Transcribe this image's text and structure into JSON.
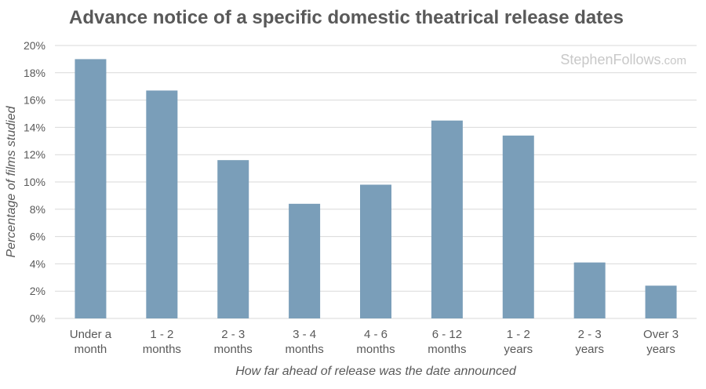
{
  "chart_data": {
    "type": "bar",
    "title": "Advance notice of a specific domestic theatrical release dates",
    "watermark": "StephenFollows.com",
    "xlabel": "How far ahead of release was the date announced",
    "ylabel": "Percentage of films studied",
    "ylim": [
      0,
      20
    ],
    "yticks": [
      "0%",
      "2%",
      "4%",
      "6%",
      "8%",
      "10%",
      "12%",
      "14%",
      "16%",
      "18%",
      "20%"
    ],
    "grid": true,
    "categories": [
      [
        "Under a",
        "month"
      ],
      [
        "1 - 2",
        "months"
      ],
      [
        "2 - 3",
        "months"
      ],
      [
        "3 - 4",
        "months"
      ],
      [
        "4 - 6",
        "months"
      ],
      [
        "6 - 12",
        "months"
      ],
      [
        "1 - 2",
        "years"
      ],
      [
        "2 - 3",
        "years"
      ],
      [
        "Over 3",
        "years"
      ]
    ],
    "values": [
      19.0,
      16.7,
      11.6,
      8.4,
      9.8,
      14.5,
      13.4,
      4.1,
      2.4
    ],
    "colors": {
      "bar": "#7a9eb9",
      "grid": "#d9d9d9",
      "text": "#595959",
      "title": "#595959"
    }
  }
}
